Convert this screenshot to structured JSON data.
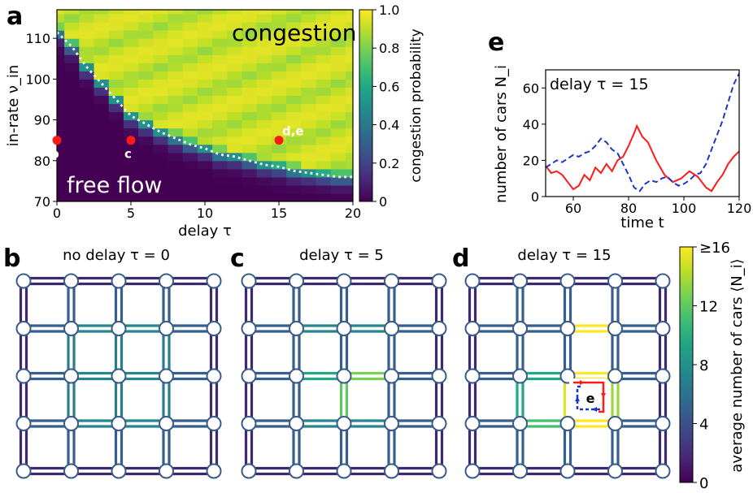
{
  "panel_labels": {
    "a": "a",
    "b": "b",
    "c": "c",
    "d": "d",
    "e": "e"
  },
  "colors": {
    "viridis_dark": "#440154",
    "viridis_mid": "#21918c",
    "viridis_light": "#fde725",
    "trace_red": "#ff1a1a",
    "trace_blue": "#1f35c8",
    "node_stroke": "#3b5b8c"
  },
  "chart_data": [
    {
      "id": "a",
      "type": "heatmap",
      "xlabel": "delay τ",
      "ylabel": "in-rate ν_in",
      "xlim": [
        0,
        20
      ],
      "ylim": [
        70,
        117
      ],
      "xticks": [
        "0",
        "5",
        "10",
        "15",
        "20"
      ],
      "yticks": [
        "70",
        "80",
        "90",
        "100",
        "110"
      ],
      "colorbar_label": "congestion probability",
      "colorbar_ticks": [
        "0",
        "0.2",
        "0.4",
        "0.6",
        "0.8",
        "1.0"
      ],
      "region_labels": {
        "congestion": "congestion",
        "free_flow": "free flow"
      },
      "boundary_tau": [
        0,
        1,
        2,
        3,
        4,
        5,
        6,
        7,
        8,
        9,
        10,
        11,
        12,
        13,
        14,
        15,
        16,
        17,
        18,
        19,
        20
      ],
      "boundary_nu": [
        111.5,
        108,
        103,
        99,
        95,
        91,
        89,
        87,
        85.5,
        84,
        83,
        81.5,
        81,
        80,
        79,
        78.5,
        77.5,
        77,
        76.5,
        76,
        76
      ],
      "markers": [
        {
          "label": "b",
          "tau": 0,
          "nu": 85
        },
        {
          "label": "c",
          "tau": 5,
          "nu": 85
        },
        {
          "label": "d,e",
          "tau": 15,
          "nu": 85
        }
      ]
    },
    {
      "id": "e",
      "type": "line",
      "annotation": "delay τ = 15",
      "xlabel": "time t",
      "ylabel": "number of cars N_i",
      "xlim": [
        50,
        120
      ],
      "ylim": [
        0,
        70
      ],
      "xticks": [
        "60",
        "80",
        "100",
        "120"
      ],
      "yticks": [
        "0",
        "20",
        "40",
        "60"
      ],
      "series": [
        {
          "style": "solid",
          "color": "red",
          "x": [
            50,
            52,
            54,
            56,
            58,
            60,
            62,
            64,
            66,
            68,
            70,
            72,
            74,
            76,
            78,
            80,
            82,
            83,
            85,
            87,
            90,
            93,
            96,
            99,
            102,
            105,
            108,
            110,
            112,
            114,
            116,
            118,
            120
          ],
          "y": [
            17,
            13,
            14,
            12,
            8,
            4,
            6,
            12,
            9,
            16,
            13,
            18,
            14,
            20,
            22,
            28,
            35,
            39,
            33,
            30,
            20,
            12,
            8,
            10,
            14,
            11,
            5,
            3,
            8,
            12,
            18,
            22,
            25
          ]
        },
        {
          "style": "dashed",
          "color": "blue",
          "x": [
            50,
            52,
            54,
            56,
            58,
            60,
            62,
            64,
            66,
            68,
            70,
            72,
            74,
            76,
            78,
            80,
            82,
            84,
            86,
            88,
            90,
            92,
            94,
            96,
            98,
            100,
            102,
            104,
            106,
            108,
            110,
            112,
            114,
            116,
            118,
            120
          ],
          "y": [
            16,
            18,
            20,
            19,
            21,
            23,
            22,
            24,
            25,
            28,
            32,
            30,
            26,
            24,
            18,
            12,
            5,
            3,
            7,
            9,
            8,
            10,
            11,
            8,
            6,
            7,
            9,
            12,
            13,
            18,
            26,
            34,
            42,
            52,
            62,
            68
          ]
        }
      ]
    },
    {
      "id": "bcd",
      "type": "heatmap",
      "panel_titles": [
        "no delay τ = 0",
        "delay τ = 5",
        "delay τ = 15"
      ],
      "colorbar_label": "average number of cars ⟨N_i⟩",
      "colorbar_ticks": [
        "0",
        "4",
        "8",
        "12",
        "≥16"
      ],
      "loop_label": "e"
    }
  ]
}
